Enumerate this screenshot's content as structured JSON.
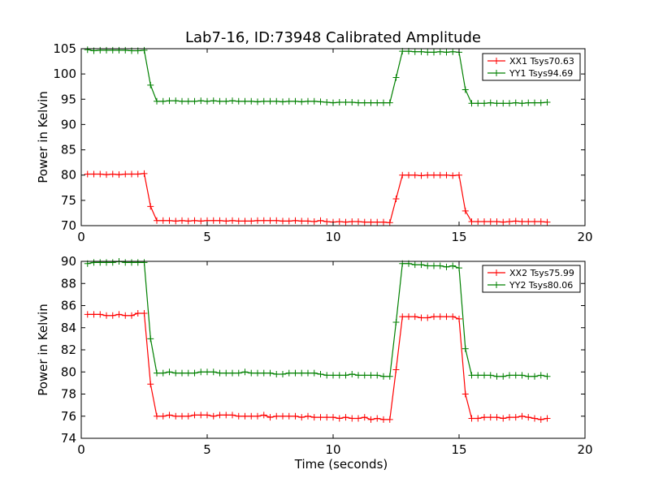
{
  "title": "Lab7-16, ID:73948 Calibrated Amplitude",
  "colors": {
    "XX": "#ff0000",
    "YY": "#008000"
  },
  "chart_data": [
    {
      "type": "line",
      "ylabel": "Power in Kelvin",
      "xlabel": "",
      "xlim": [
        0,
        20
      ],
      "ylim": [
        70,
        105
      ],
      "xticks": [
        0,
        5,
        10,
        15,
        20
      ],
      "yticks": [
        70,
        75,
        80,
        85,
        90,
        95,
        100,
        105
      ],
      "legend_position": "top-right",
      "series": [
        {
          "name": "XX1 Tsys70.63",
          "color": "#ff0000",
          "x": [
            0.25,
            0.5,
            0.75,
            1.0,
            1.25,
            1.5,
            1.75,
            2.0,
            2.25,
            2.5,
            2.75,
            3.0,
            3.25,
            3.5,
            3.75,
            4.0,
            4.25,
            4.5,
            4.75,
            5.0,
            5.25,
            5.5,
            5.75,
            6.0,
            6.25,
            6.5,
            6.75,
            7.0,
            7.25,
            7.5,
            7.75,
            8.0,
            8.25,
            8.5,
            8.75,
            9.0,
            9.25,
            9.5,
            9.75,
            10.0,
            10.25,
            10.5,
            10.75,
            11.0,
            11.25,
            11.5,
            11.75,
            12.0,
            12.25,
            12.5,
            12.75,
            13.0,
            13.25,
            13.5,
            13.75,
            14.0,
            14.25,
            14.5,
            14.75,
            15.0,
            15.25,
            15.5,
            15.75,
            16.0,
            16.25,
            16.5,
            16.75,
            17.0,
            17.25,
            17.5,
            17.75,
            18.0,
            18.25,
            18.5
          ],
          "y": [
            80.2,
            80.2,
            80.2,
            80.1,
            80.2,
            80.1,
            80.2,
            80.2,
            80.2,
            80.3,
            73.8,
            71.0,
            71.0,
            71.0,
            70.9,
            71.0,
            70.9,
            71.0,
            70.9,
            71.0,
            71.0,
            71.0,
            70.9,
            71.0,
            70.9,
            70.9,
            70.9,
            71.0,
            71.0,
            71.0,
            71.0,
            70.9,
            70.9,
            71.0,
            70.9,
            70.9,
            70.8,
            71.0,
            70.8,
            70.7,
            70.8,
            70.7,
            70.8,
            70.8,
            70.7,
            70.7,
            70.7,
            70.7,
            70.6,
            75.3,
            80.0,
            80.0,
            80.0,
            79.9,
            80.0,
            80.0,
            80.0,
            80.0,
            79.9,
            80.0,
            72.9,
            70.8,
            70.8,
            70.8,
            70.8,
            70.8,
            70.7,
            70.8,
            70.9,
            70.8,
            70.8,
            70.8,
            70.8,
            70.7
          ]
        },
        {
          "name": "YY1 Tsys94.69",
          "color": "#008000",
          "x": [
            0.25,
            0.5,
            0.75,
            1.0,
            1.25,
            1.5,
            1.75,
            2.0,
            2.25,
            2.5,
            2.75,
            3.0,
            3.25,
            3.5,
            3.75,
            4.0,
            4.25,
            4.5,
            4.75,
            5.0,
            5.25,
            5.5,
            5.75,
            6.0,
            6.25,
            6.5,
            6.75,
            7.0,
            7.25,
            7.5,
            7.75,
            8.0,
            8.25,
            8.5,
            8.75,
            9.0,
            9.25,
            9.5,
            9.75,
            10.0,
            10.25,
            10.5,
            10.75,
            11.0,
            11.25,
            11.5,
            11.75,
            12.0,
            12.25,
            12.5,
            12.75,
            13.0,
            13.25,
            13.5,
            13.75,
            14.0,
            14.25,
            14.5,
            14.75,
            15.0,
            15.25,
            15.5,
            15.75,
            16.0,
            16.25,
            16.5,
            16.75,
            17.0,
            17.25,
            17.5,
            17.75,
            18.0,
            18.25,
            18.5
          ],
          "y": [
            104.8,
            104.6,
            104.7,
            104.7,
            104.7,
            104.7,
            104.7,
            104.6,
            104.6,
            104.7,
            97.8,
            94.6,
            94.6,
            94.7,
            94.7,
            94.6,
            94.6,
            94.6,
            94.7,
            94.6,
            94.7,
            94.6,
            94.6,
            94.7,
            94.6,
            94.6,
            94.6,
            94.5,
            94.6,
            94.6,
            94.6,
            94.5,
            94.6,
            94.6,
            94.5,
            94.6,
            94.6,
            94.5,
            94.4,
            94.3,
            94.4,
            94.4,
            94.4,
            94.3,
            94.3,
            94.3,
            94.3,
            94.3,
            94.3,
            99.3,
            104.5,
            104.5,
            104.4,
            104.4,
            104.3,
            104.3,
            104.4,
            104.3,
            104.4,
            104.3,
            96.9,
            94.2,
            94.2,
            94.2,
            94.3,
            94.2,
            94.2,
            94.2,
            94.3,
            94.2,
            94.3,
            94.3,
            94.3,
            94.4
          ]
        }
      ]
    },
    {
      "type": "line",
      "ylabel": "Power in Kelvin",
      "xlabel": "Time (seconds)",
      "xlim": [
        0,
        20
      ],
      "ylim": [
        74,
        90
      ],
      "xticks": [
        0,
        5,
        10,
        15,
        20
      ],
      "yticks": [
        74,
        76,
        78,
        80,
        82,
        84,
        86,
        88,
        90
      ],
      "legend_position": "top-right",
      "series": [
        {
          "name": "XX2 Tsys75.99",
          "color": "#ff0000",
          "x": [
            0.25,
            0.5,
            0.75,
            1.0,
            1.25,
            1.5,
            1.75,
            2.0,
            2.25,
            2.5,
            2.75,
            3.0,
            3.25,
            3.5,
            3.75,
            4.0,
            4.25,
            4.5,
            4.75,
            5.0,
            5.25,
            5.5,
            5.75,
            6.0,
            6.25,
            6.5,
            6.75,
            7.0,
            7.25,
            7.5,
            7.75,
            8.0,
            8.25,
            8.5,
            8.75,
            9.0,
            9.25,
            9.5,
            9.75,
            10.0,
            10.25,
            10.5,
            10.75,
            11.0,
            11.25,
            11.5,
            11.75,
            12.0,
            12.25,
            12.5,
            12.75,
            13.0,
            13.25,
            13.5,
            13.75,
            14.0,
            14.25,
            14.5,
            14.75,
            15.0,
            15.25,
            15.5,
            15.75,
            16.0,
            16.25,
            16.5,
            16.75,
            17.0,
            17.25,
            17.5,
            17.75,
            18.0,
            18.25,
            18.5
          ],
          "y": [
            85.2,
            85.2,
            85.2,
            85.1,
            85.1,
            85.2,
            85.1,
            85.1,
            85.3,
            85.3,
            78.9,
            76.0,
            76.0,
            76.1,
            76.0,
            76.0,
            76.0,
            76.1,
            76.1,
            76.1,
            76.0,
            76.1,
            76.1,
            76.1,
            76.0,
            76.0,
            76.0,
            76.0,
            76.1,
            75.9,
            76.0,
            76.0,
            76.0,
            76.0,
            75.9,
            76.0,
            75.9,
            75.9,
            75.9,
            75.9,
            75.8,
            75.9,
            75.8,
            75.8,
            75.9,
            75.7,
            75.8,
            75.7,
            75.7,
            80.2,
            85.0,
            85.0,
            85.0,
            84.9,
            84.9,
            85.0,
            85.0,
            85.0,
            85.0,
            84.8,
            78.0,
            75.8,
            75.8,
            75.9,
            75.9,
            75.9,
            75.8,
            75.9,
            75.9,
            76.0,
            75.9,
            75.8,
            75.7,
            75.8
          ]
        },
        {
          "name": "YY2 Tsys80.06",
          "color": "#008000",
          "x": [
            0.25,
            0.5,
            0.75,
            1.0,
            1.25,
            1.5,
            1.75,
            2.0,
            2.25,
            2.5,
            2.75,
            3.0,
            3.25,
            3.5,
            3.75,
            4.0,
            4.25,
            4.5,
            4.75,
            5.0,
            5.25,
            5.5,
            5.75,
            6.0,
            6.25,
            6.5,
            6.75,
            7.0,
            7.25,
            7.5,
            7.75,
            8.0,
            8.25,
            8.5,
            8.75,
            9.0,
            9.25,
            9.5,
            9.75,
            10.0,
            10.25,
            10.5,
            10.75,
            11.0,
            11.25,
            11.5,
            11.75,
            12.0,
            12.25,
            12.5,
            12.75,
            13.0,
            13.25,
            13.5,
            13.75,
            14.0,
            14.25,
            14.5,
            14.75,
            15.0,
            15.25,
            15.5,
            15.75,
            16.0,
            16.25,
            16.5,
            16.75,
            17.0,
            17.25,
            17.5,
            17.75,
            18.0,
            18.25,
            18.5
          ],
          "y": [
            89.8,
            89.9,
            89.9,
            89.9,
            89.9,
            90.0,
            89.9,
            89.9,
            89.9,
            89.9,
            83.0,
            79.9,
            79.9,
            80.0,
            79.9,
            79.9,
            79.9,
            79.9,
            80.0,
            80.0,
            80.0,
            79.9,
            79.9,
            79.9,
            79.9,
            80.0,
            79.9,
            79.9,
            79.9,
            79.9,
            79.8,
            79.8,
            79.9,
            79.9,
            79.9,
            79.9,
            79.9,
            79.8,
            79.7,
            79.7,
            79.7,
            79.7,
            79.8,
            79.7,
            79.7,
            79.7,
            79.7,
            79.6,
            79.6,
            84.5,
            89.8,
            89.8,
            89.7,
            89.7,
            89.6,
            89.6,
            89.6,
            89.5,
            89.6,
            89.4,
            82.1,
            79.7,
            79.7,
            79.7,
            79.7,
            79.6,
            79.6,
            79.7,
            79.7,
            79.7,
            79.6,
            79.6,
            79.7,
            79.6
          ]
        }
      ]
    }
  ]
}
